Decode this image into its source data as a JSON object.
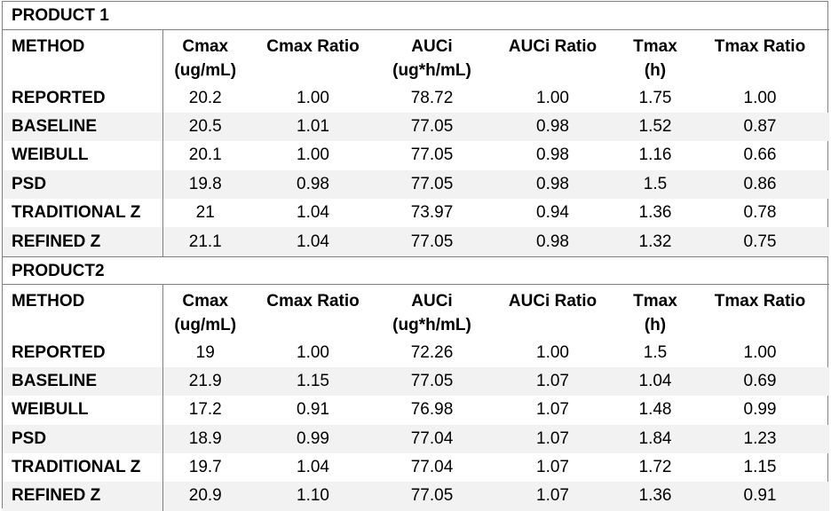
{
  "headers": [
    "METHOD",
    "Cmax\n(ug/mL)",
    "Cmax Ratio",
    "AUCi\n(ug*h/mL)",
    "AUCi Ratio",
    "Tmax\n(h)",
    "Tmax Ratio"
  ],
  "products": [
    {
      "title": "PRODUCT 1",
      "rows": [
        [
          "REPORTED",
          "20.2",
          "1.00",
          "78.72",
          "1.00",
          "1.75",
          "1.00"
        ],
        [
          "BASELINE",
          "20.5",
          "1.01",
          "77.05",
          "0.98",
          "1.52",
          "0.87"
        ],
        [
          "WEIBULL",
          "20.1",
          "1.00",
          "77.05",
          "0.98",
          "1.16",
          "0.66"
        ],
        [
          "PSD",
          "19.8",
          "0.98",
          "77.05",
          "0.98",
          "1.5",
          "0.86"
        ],
        [
          "TRADITIONAL Z",
          "21",
          "1.04",
          "73.97",
          "0.94",
          "1.36",
          "0.78"
        ],
        [
          "REFINED Z",
          "21.1",
          "1.04",
          "77.05",
          "0.98",
          "1.32",
          "0.75"
        ]
      ]
    },
    {
      "title": "PRODUCT2",
      "rows": [
        [
          "REPORTED",
          "19",
          "1.00",
          "72.26",
          "1.00",
          "1.5",
          "1.00"
        ],
        [
          "BASELINE",
          "21.9",
          "1.15",
          "77.05",
          "1.07",
          "1.04",
          "0.69"
        ],
        [
          "WEIBULL",
          "17.2",
          "0.91",
          "76.98",
          "1.07",
          "1.48",
          "0.99"
        ],
        [
          "PSD",
          "18.9",
          "0.99",
          "77.04",
          "1.07",
          "1.84",
          "1.23"
        ],
        [
          "TRADITIONAL Z",
          "19.7",
          "1.04",
          "77.04",
          "1.07",
          "1.72",
          "1.15"
        ],
        [
          "REFINED Z",
          "20.9",
          "1.10",
          "77.05",
          "1.07",
          "1.36",
          "0.91"
        ]
      ]
    }
  ]
}
